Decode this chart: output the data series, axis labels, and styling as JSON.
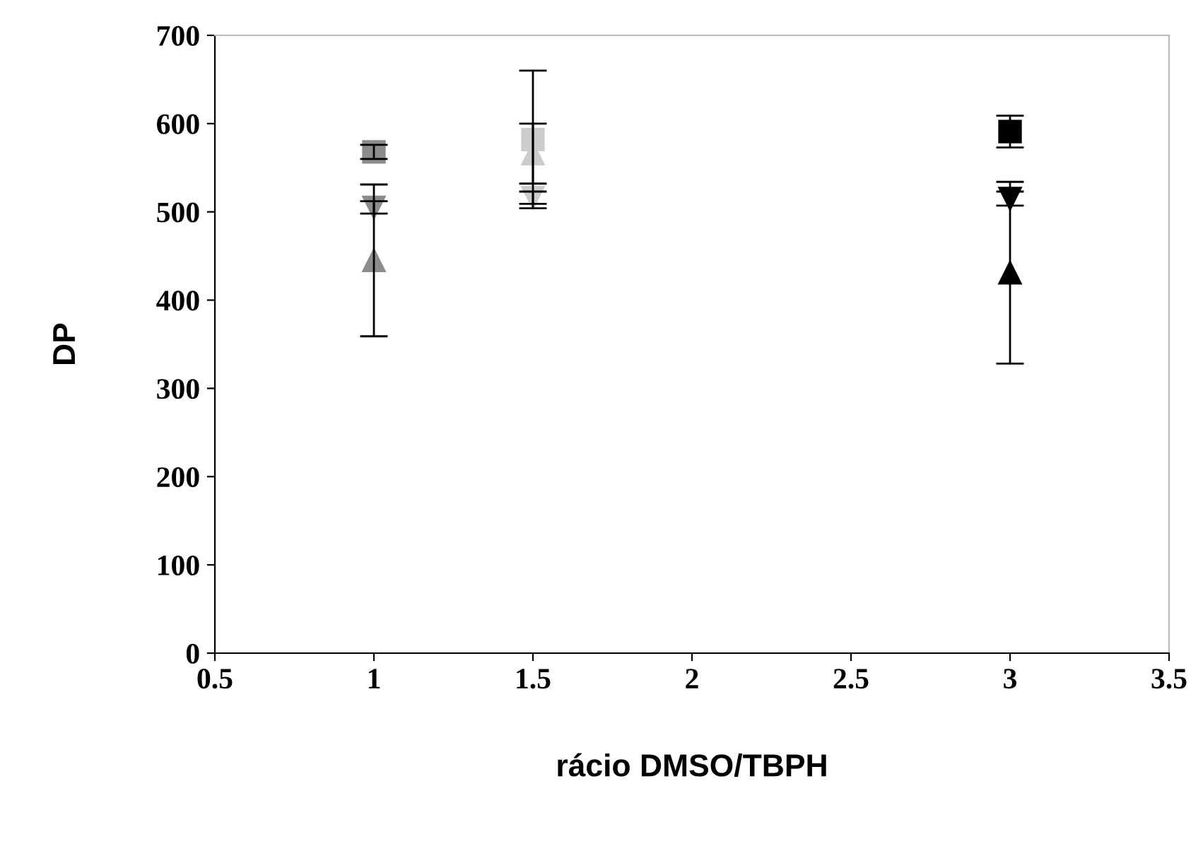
{
  "chart_data": {
    "type": "scatter",
    "xlabel": "rácio DMSO/TBPH",
    "ylabel": "DP",
    "xlim": [
      0.5,
      3.5
    ],
    "xticks": [
      0.5,
      1,
      1.5,
      2,
      2.5,
      3,
      3.5
    ],
    "ylim": [
      0,
      700
    ],
    "yticks": [
      0,
      100,
      200,
      300,
      400,
      500,
      600,
      700
    ],
    "grid": false,
    "legend": false,
    "series": [
      {
        "color": "#8c8c8c",
        "marker": "square",
        "x": [
          1
        ],
        "values": [
          568
        ],
        "errors": [
          8
        ]
      },
      {
        "color": "#8c8c8c",
        "marker": "triangle_down",
        "x": [
          1
        ],
        "values": [
          505
        ],
        "errors": [
          7
        ]
      },
      {
        "color": "#8c8c8c",
        "marker": "triangle",
        "x": [
          1
        ],
        "values": [
          445
        ],
        "errors": [
          86
        ]
      },
      {
        "color": "#cccccc",
        "marker": "square",
        "x": [
          1.5
        ],
        "values": [
          582
        ],
        "errors": [
          78
        ]
      },
      {
        "color": "#cccccc",
        "marker": "triangle",
        "x": [
          1.5
        ],
        "values": [
          566
        ],
        "errors": [
          34
        ]
      },
      {
        "color": "#cccccc",
        "marker": "triangle_down",
        "x": [
          1.5
        ],
        "values": [
          516
        ],
        "errors": [
          7
        ]
      },
      {
        "color": "#000000",
        "marker": "square",
        "x": [
          3
        ],
        "values": [
          591
        ],
        "errors": [
          18
        ]
      },
      {
        "color": "#000000",
        "marker": "triangle_down",
        "x": [
          3
        ],
        "values": [
          515
        ],
        "errors": [
          8
        ]
      },
      {
        "color": "#000000",
        "marker": "triangle",
        "x": [
          3
        ],
        "values": [
          431
        ],
        "errors": [
          103
        ]
      }
    ]
  }
}
